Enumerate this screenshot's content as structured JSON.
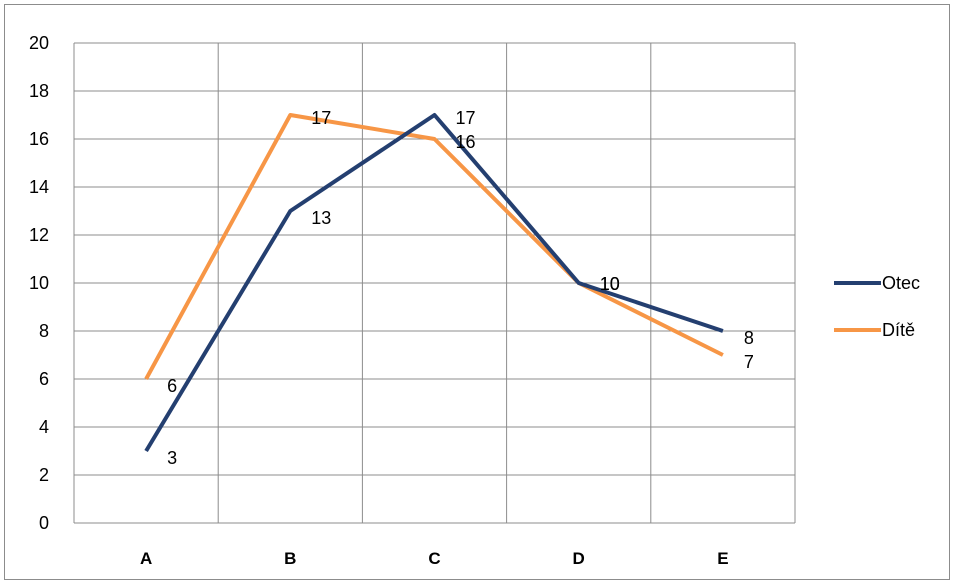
{
  "chart_data": {
    "type": "line",
    "categories": [
      "A",
      "B",
      "C",
      "D",
      "E"
    ],
    "series": [
      {
        "name": "Otec",
        "values": [
          3,
          13,
          17,
          10,
          8
        ],
        "color": "#243f70"
      },
      {
        "name": "Dítě",
        "values": [
          6,
          17,
          16,
          10,
          7
        ],
        "color": "#f79646"
      }
    ],
    "ylim": [
      0,
      20
    ],
    "yticks": [
      0,
      2,
      4,
      6,
      8,
      10,
      12,
      14,
      16,
      18,
      20
    ],
    "grid": true,
    "legend_position": "right",
    "data_labels": true,
    "title": "",
    "xlabel": "",
    "ylabel": ""
  }
}
